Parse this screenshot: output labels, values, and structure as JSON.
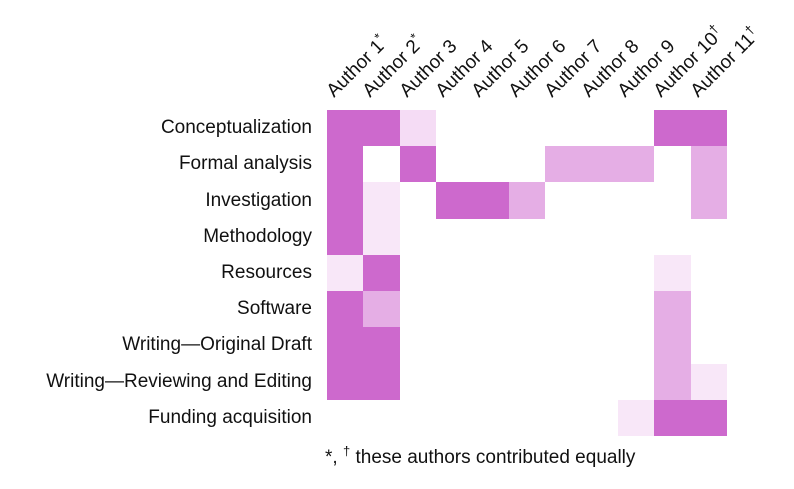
{
  "chart_data": {
    "type": "heatmap",
    "title": "",
    "xlabel": "",
    "ylabel": "",
    "grid": false,
    "legend_position": "none",
    "columns": [
      {
        "label": "Author 1",
        "marker": "*"
      },
      {
        "label": "Author 2",
        "marker": "*"
      },
      {
        "label": "Author 3",
        "marker": ""
      },
      {
        "label": "Author 4",
        "marker": ""
      },
      {
        "label": "Author 5",
        "marker": ""
      },
      {
        "label": "Author 6",
        "marker": ""
      },
      {
        "label": "Author 7",
        "marker": ""
      },
      {
        "label": "Author 8",
        "marker": ""
      },
      {
        "label": "Author 9",
        "marker": ""
      },
      {
        "label": "Author 10",
        "marker": "†"
      },
      {
        "label": "Author 11",
        "marker": "†"
      }
    ],
    "rows": [
      "Conceptualization",
      "Formal analysis",
      "Investigation",
      "Methodology",
      "Resources",
      "Software",
      "Writing—Original Draft",
      "Writing—Reviewing and Editing",
      "Funding acquisition"
    ],
    "values": [
      [
        4,
        4,
        2,
        0,
        0,
        0,
        0,
        0,
        0,
        4,
        4
      ],
      [
        4,
        0,
        4,
        0,
        0,
        0,
        3,
        3,
        3,
        0,
        3
      ],
      [
        4,
        1,
        0,
        4,
        4,
        3,
        0,
        0,
        0,
        0,
        3
      ],
      [
        4,
        1,
        0,
        0,
        0,
        0,
        0,
        0,
        0,
        0,
        0
      ],
      [
        1,
        4,
        0,
        0,
        0,
        0,
        0,
        0,
        0,
        1,
        0
      ],
      [
        4,
        3,
        0,
        0,
        0,
        0,
        0,
        0,
        0,
        3,
        0
      ],
      [
        4,
        4,
        0,
        0,
        0,
        0,
        0,
        0,
        0,
        3,
        0
      ],
      [
        4,
        4,
        0,
        0,
        0,
        0,
        0,
        0,
        0,
        3,
        1
      ],
      [
        0,
        0,
        0,
        0,
        0,
        0,
        0,
        0,
        1,
        4,
        4
      ]
    ],
    "palette": [
      "#ffffff",
      "#f8e7f8",
      "#f5dcf5",
      "#e5aee5",
      "#cd69cd"
    ],
    "intensity_estimate": [
      0,
      0.125,
      0.25,
      0.5,
      1
    ],
    "footnote": {
      "star": "*,",
      "dagger": "†",
      "text": "these authors contributed equally"
    }
  }
}
